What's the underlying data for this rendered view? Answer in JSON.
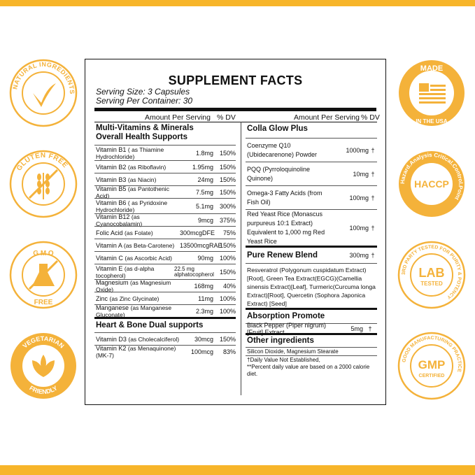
{
  "title": "SUPPLEMENT FACTS",
  "serving_size": "Serving Size: 3 Capsules",
  "servings_per_container": "Serving Per Container: 30",
  "header": {
    "amount": "Amount Per Serving",
    "dv": "% DV"
  },
  "left": {
    "section1": {
      "line1": "Multi-Vitamins & Minerals",
      "line2": "Overall Health Supports"
    },
    "rows": [
      {
        "name": "Vitamin B1",
        "detail": "( as Thiamine Hydrochloride)",
        "amount": "1.8mg",
        "dv": "150%"
      },
      {
        "name": "Vitamin B2",
        "detail": "(as Riboflavin)",
        "amount": "1.95mg",
        "dv": "150%"
      },
      {
        "name": "Vitamin B3",
        "detail": "(as Niacin)",
        "amount": "24mg",
        "dv": "150%"
      },
      {
        "name": "Vitamin B5",
        "detail": "(as Pantothenic Acid)",
        "amount": "7.5mg",
        "dv": "150%"
      },
      {
        "name": "Vitamin B6",
        "detail": "( as Pyridoxine Hydrochloride)",
        "amount": "5.1mg",
        "dv": "300%"
      },
      {
        "name": "Vitamin B12",
        "detail": "(as Cyanocobalamin)",
        "amount": "9mcg",
        "dv": "375%"
      },
      {
        "name": "Folic Acid",
        "detail": "(as Folate)",
        "amount": "300mcgDFE",
        "dv": "75%"
      },
      {
        "name": "Vitamin A",
        "detail": "(as Beta-Carotene)",
        "amount": "13500mcgRAE",
        "dv": "150%"
      },
      {
        "name": "Vitamin C",
        "detail": "(as Ascorbic Acid)",
        "amount": "90mg",
        "dv": "100%"
      },
      {
        "name": "Vitamin E",
        "detail": "(as d-alpha tocopherol)",
        "amount": "22.5 mg alphatocopherol",
        "dv": "150%"
      },
      {
        "name": "Magnesium",
        "detail": "(as Magnesium Oxide)",
        "amount": "168mg",
        "dv": "40%"
      },
      {
        "name": "Zinc",
        "detail": "(as Zinc Glycinate)",
        "amount": "11mg",
        "dv": "100%"
      },
      {
        "name": "Manganese",
        "detail": "(as Manganese Gluconate)",
        "amount": "2.3mg",
        "dv": "100%"
      }
    ],
    "section2": "Heart & Bone Dual supports",
    "rows2": [
      {
        "name": "Vitamin D3",
        "detail": "(as Cholecalciferol)",
        "amount": "30mcg",
        "dv": "150%"
      },
      {
        "name": "Vitamin K2",
        "detail": "(as Menaquinone)(MK-7)",
        "amount": "100mcg",
        "dv": "83%"
      }
    ]
  },
  "right": {
    "section1": "Colla Glow Plus",
    "rows": [
      {
        "name": "Coenzyme Q10 (Ubidecarenone) Powder",
        "amount": "1000mg",
        "mark": "†"
      },
      {
        "name": "PQQ (Pyrroloquinoline Quinone)",
        "amount": "10mg",
        "mark": "†"
      },
      {
        "name": "Omega-3 Fatty Acids (from Fish Oil)",
        "amount": "100mg",
        "mark": "†"
      },
      {
        "name": "Red Yeast Rice (Monascus purpureus 10:1 Extract) Equivalent to 1,000 mg Red Yeast Rice",
        "amount": "100mg",
        "mark": "†"
      }
    ],
    "section2": {
      "name": "Pure Renew Blend",
      "amount": "300mg",
      "mark": "†"
    },
    "blend": "Resveratrol (Polygonum cuspidatum Extract) [Root], Green Tea Extract(EGCG)(Camellia sinensis Extract)[Leaf], Turmeric(Curcuma longa Extract)[Root], Quercetin (Sophora Japonica Extract) [Seed]",
    "section3": "Absorption Promote",
    "row3": {
      "name": "Black Pepper (Piper nigrum)[Fruit] Extract",
      "amount": "5mg",
      "mark": "†"
    },
    "section4": "Other ingredients",
    "other": "Silicon Dioxide, Magnesium Stearate",
    "note1": "†Daily Value Not Established,",
    "note2": "**Percent daily value are based on a 2000 calorie diet."
  },
  "badges": {
    "natural": "NATURAL INGREDIENTS",
    "gluten": "GLUTEN FREE",
    "gmo_top": "G M O",
    "gmo_bottom": "FREE",
    "veg_top": "VEGETARIAN",
    "veg_bottom": "FRIENDLY",
    "usa_top": "MADE",
    "usa_bottom": "IN THE USA",
    "haccp": "HACCP",
    "haccp_ring": "Hazard.Analysis Critical.Control.Point",
    "lab": "LAB",
    "lab_sub": "TESTED",
    "lab_ring": "3RD PARTY TESTED FOR PURITY & POTENCY",
    "gmp": "GMP",
    "gmp_sub": "CERTIFIED",
    "gmp_ring": "GOOD MANUFACTURING PRACTICE"
  },
  "colors": {
    "accent": "#f7b52a",
    "ink": "#111111"
  }
}
